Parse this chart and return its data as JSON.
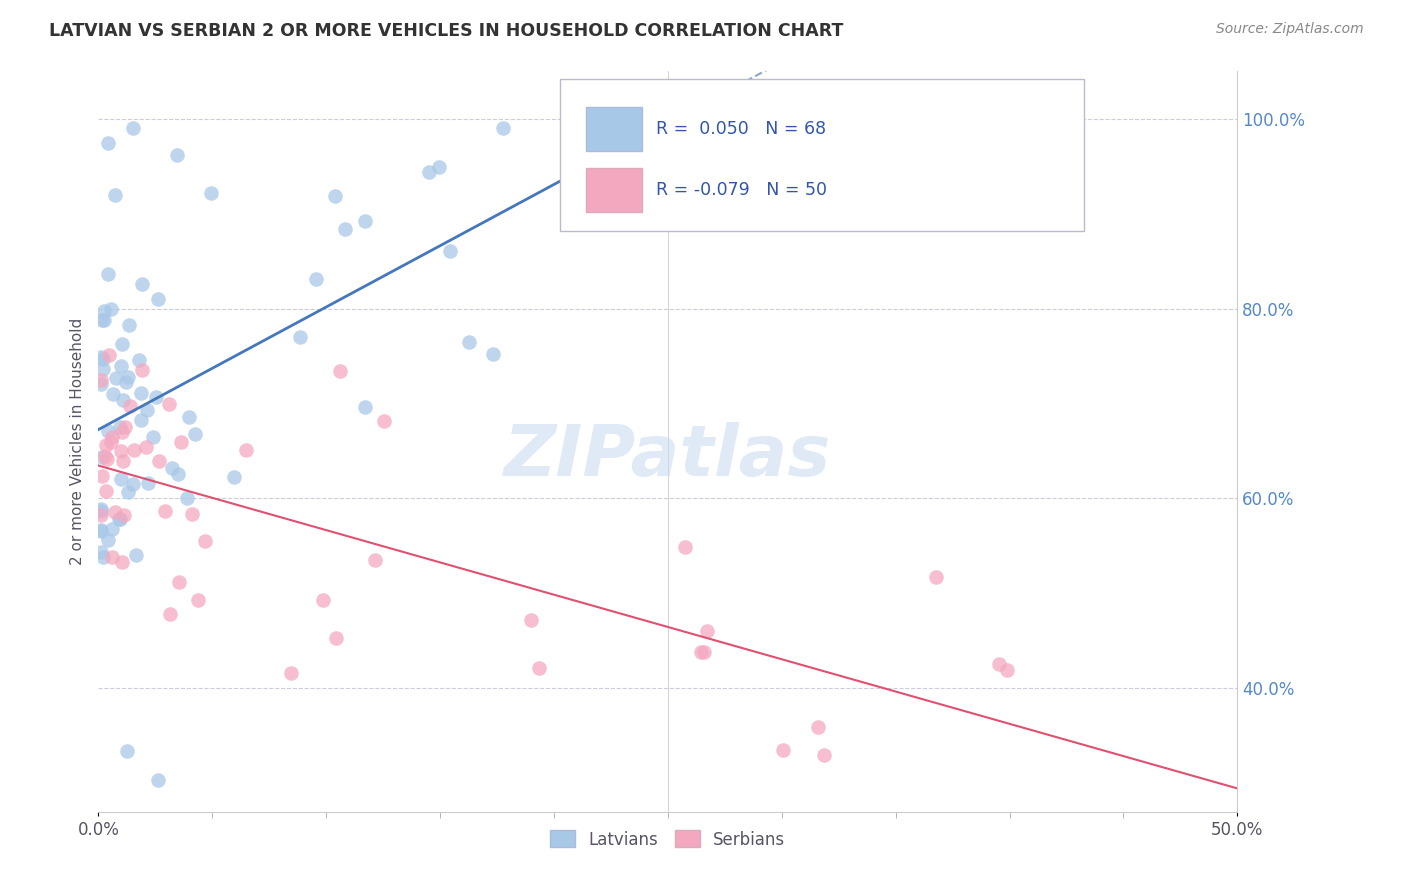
{
  "title": "LATVIAN VS SERBIAN 2 OR MORE VEHICLES IN HOUSEHOLD CORRELATION CHART",
  "source": "Source: ZipAtlas.com",
  "ylabel": "2 or more Vehicles in Household",
  "xlim": [
    0.0,
    0.5
  ],
  "ylim": [
    0.27,
    1.05
  ],
  "ytick_values": [
    0.4,
    0.6,
    0.8,
    1.0
  ],
  "ytick_labels": [
    "40.0%",
    "60.0%",
    "80.0%",
    "100.0%"
  ],
  "latvian_color": "#a8c8e8",
  "serbian_color": "#f4a8c0",
  "latvian_line_color": "#4477bb",
  "serbian_line_color": "#e05070",
  "latvian_dashed_color": "#88aacc",
  "watermark": "ZIPatlas",
  "latvian_R": 0.05,
  "latvian_N": 68,
  "serbian_R": -0.079,
  "serbian_N": 50,
  "legend_text_color": "#3355aa",
  "legend_label_color": "#333333"
}
